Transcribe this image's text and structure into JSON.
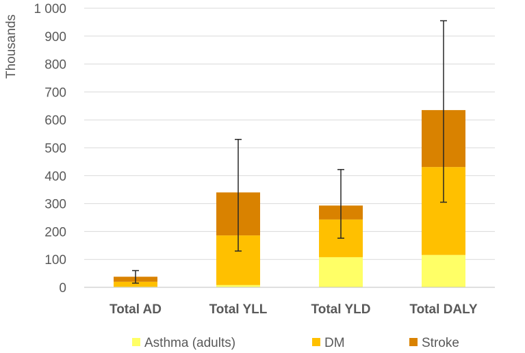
{
  "chart_data": {
    "type": "bar",
    "stacked": true,
    "categories": [
      "Total AD",
      "Total YLL",
      "Total YLD",
      "Total DALY"
    ],
    "series": [
      {
        "name": "Asthma (adults)",
        "color": "#FFFF66",
        "values": [
          2,
          8,
          108,
          116
        ]
      },
      {
        "name": "DM",
        "color": "#FFC000",
        "values": [
          18,
          178,
          135,
          315
        ]
      },
      {
        "name": "Stroke",
        "color": "#D98200",
        "values": [
          18,
          154,
          50,
          204
        ]
      }
    ],
    "error_bars": [
      {
        "center": 38,
        "low": 15,
        "high": 60
      },
      {
        "center": 340,
        "low": 130,
        "high": 530
      },
      {
        "center": 293,
        "low": 176,
        "high": 422
      },
      {
        "center": 635,
        "low": 305,
        "high": 955
      }
    ],
    "ylabel": "Thousands",
    "ylim": [
      0,
      1000
    ],
    "yticks": [
      0,
      100,
      200,
      300,
      400,
      500,
      600,
      700,
      800,
      900,
      1000
    ],
    "ytick_labels": [
      "0",
      "100",
      "200",
      "300",
      "400",
      "500",
      "600",
      "700",
      "800",
      "900",
      "1 000"
    ],
    "grid": true,
    "legend_position": "bottom"
  }
}
